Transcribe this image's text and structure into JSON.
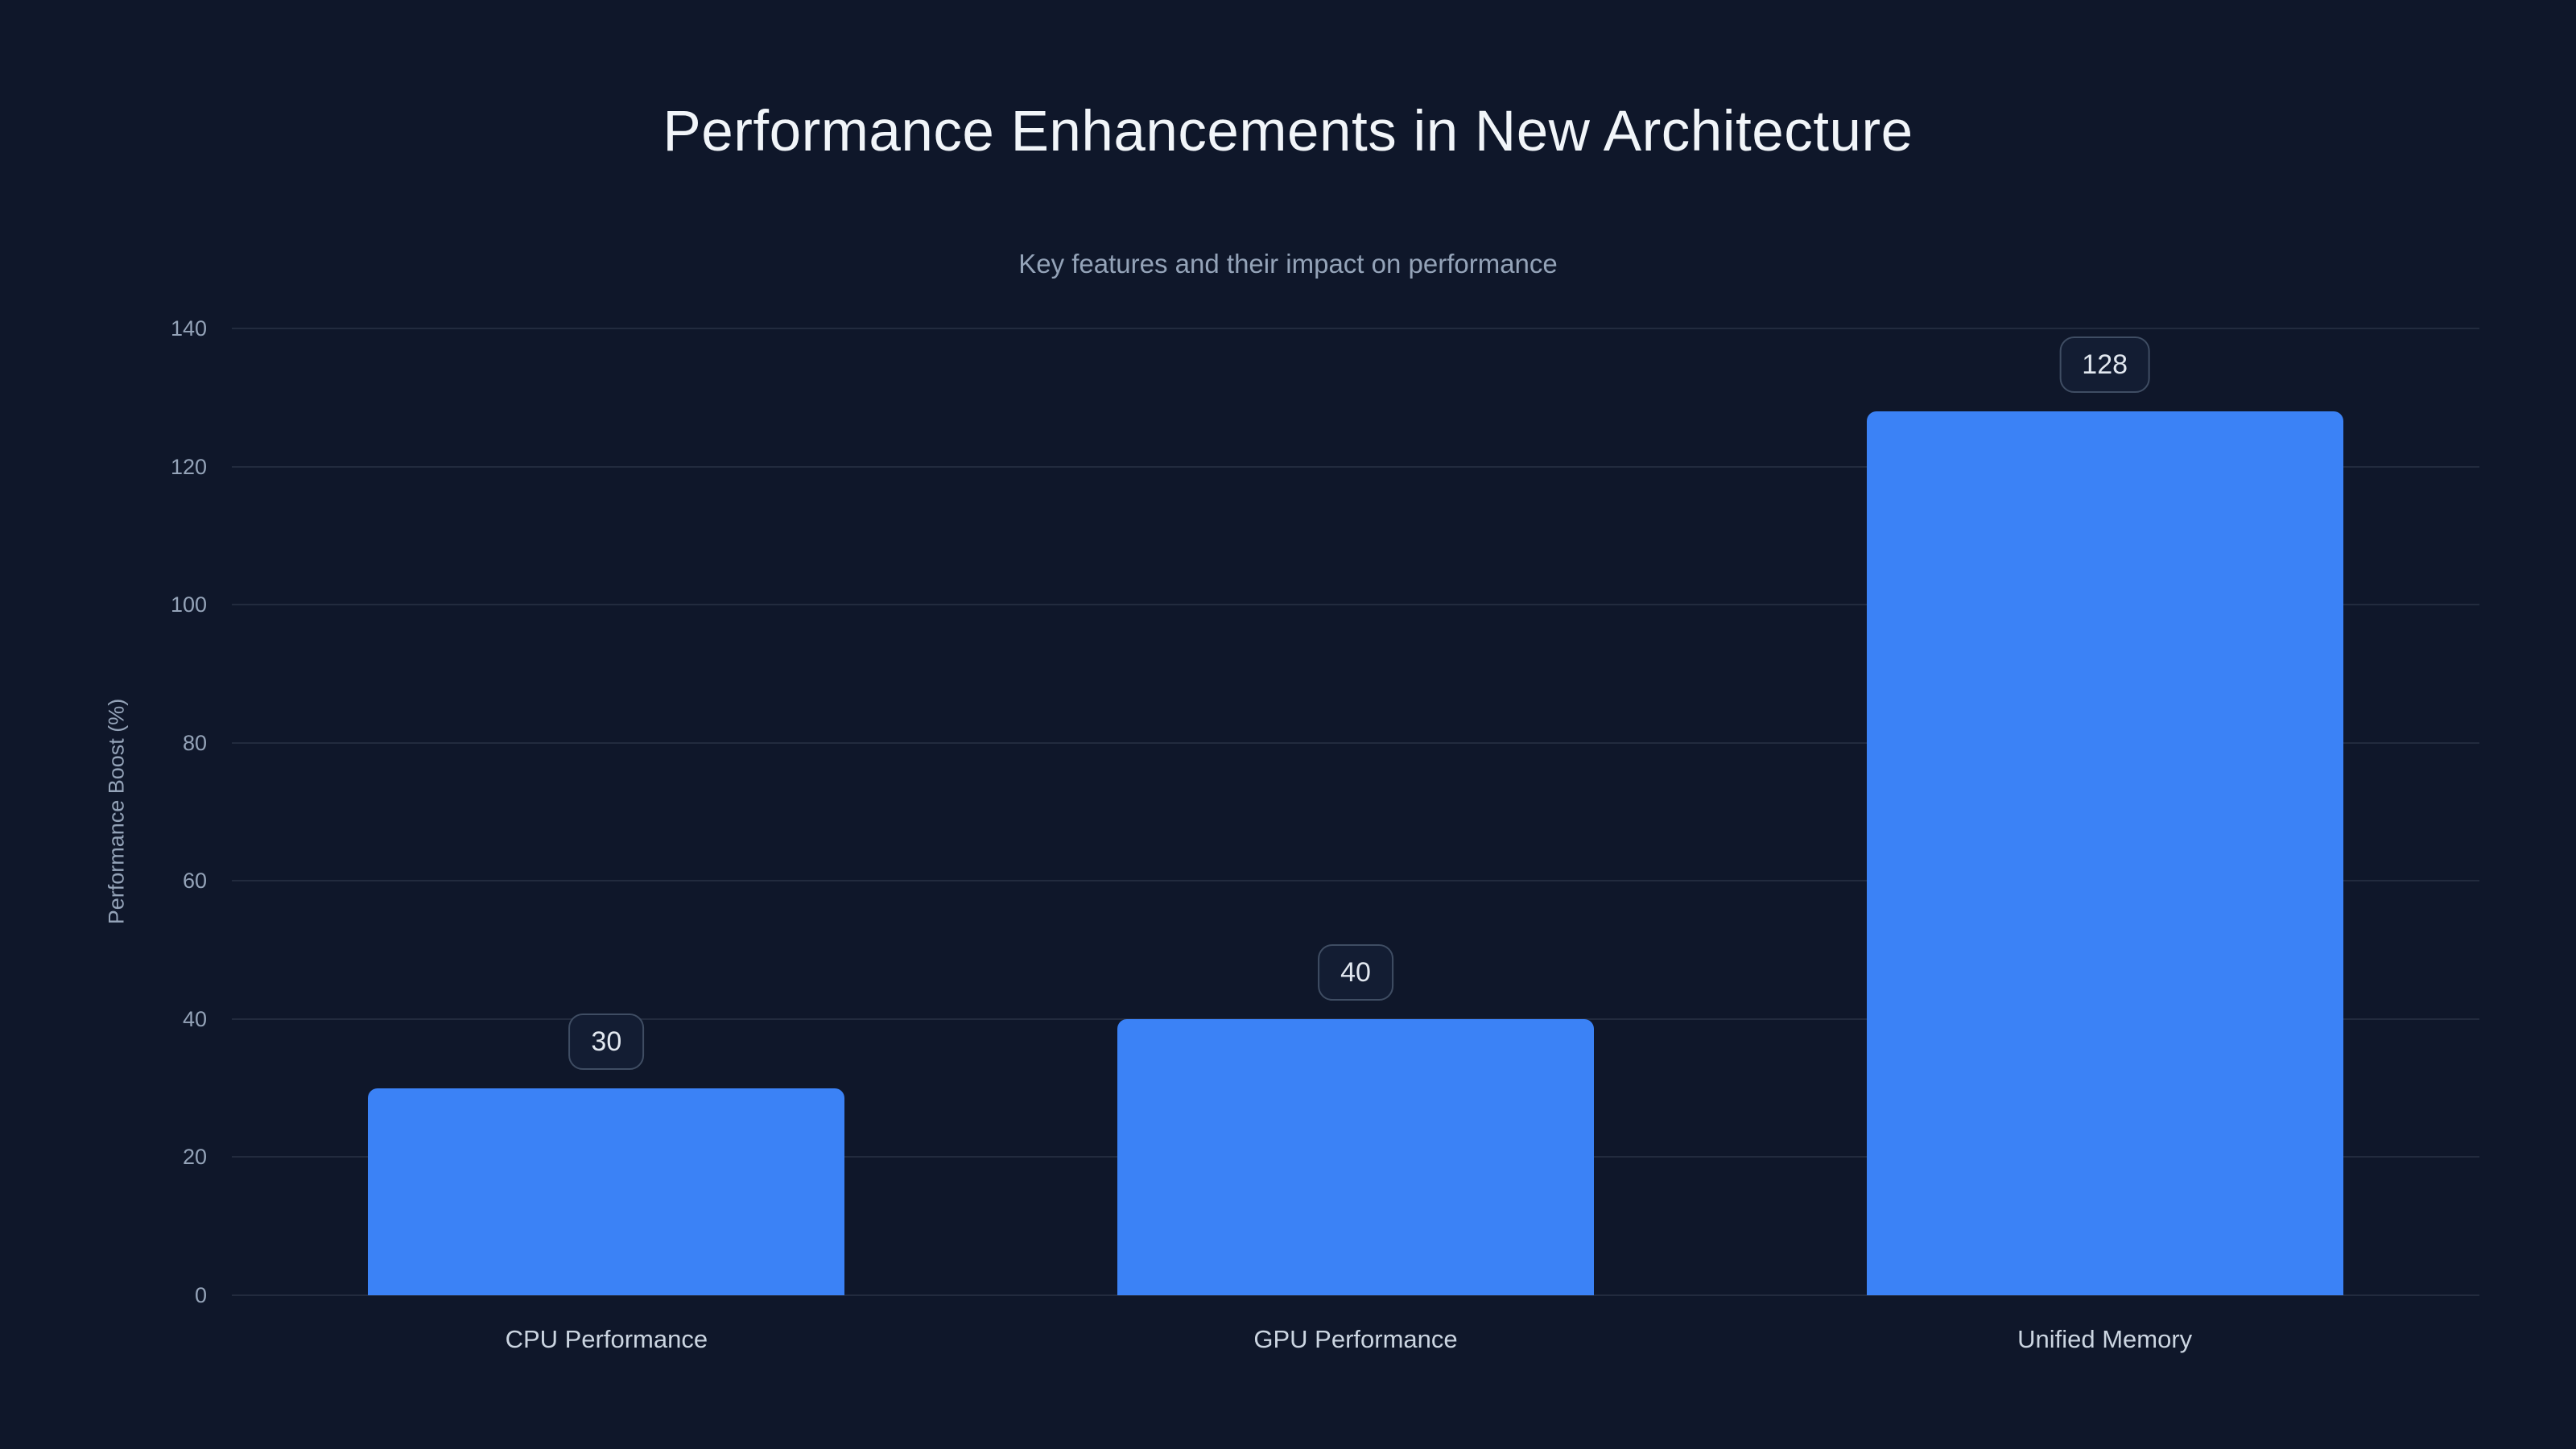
{
  "chart_data": {
    "type": "bar",
    "title": "Performance Enhancements in New Architecture",
    "subtitle": "Key features and their impact on performance",
    "xlabel": "",
    "ylabel": "Performance Boost (%)",
    "categories": [
      "CPU Performance",
      "GPU Performance",
      "Unified Memory"
    ],
    "values": [
      30,
      40,
      128
    ],
    "value_labels": [
      "30",
      "40",
      "128"
    ],
    "yticks": [
      0,
      20,
      40,
      60,
      80,
      100,
      120,
      140
    ],
    "ylim": [
      0,
      140
    ],
    "grid": true,
    "legend": "none",
    "colors": {
      "background": "#0f172a",
      "bar": "#3b82f6",
      "title": "#f1f5f9",
      "subtitle": "#94a3b8",
      "tick_label": "#94a3b8",
      "category_label": "#cbd5e1",
      "gridline": "#94a3b826",
      "badge_background": "#131d33",
      "badge_border": "#3f4d63",
      "badge_text": "#e2e8f0"
    }
  }
}
